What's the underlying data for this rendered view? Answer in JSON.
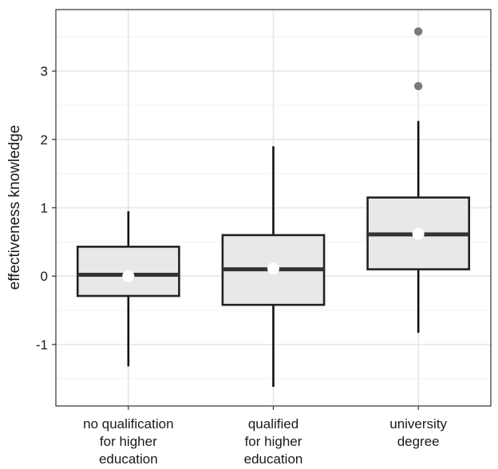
{
  "chart_data": {
    "type": "boxplot",
    "ylabel": "effectiveness knowledge",
    "xlabel": "",
    "ylim": [
      -1.9,
      3.9
    ],
    "yticks": [
      -1,
      0,
      1,
      2,
      3
    ],
    "ytick_labels": [
      "-1",
      "0",
      "1",
      "2",
      "3"
    ],
    "grid": true,
    "categories": [
      {
        "lines": [
          "no qualification",
          "for higher",
          "education"
        ]
      },
      {
        "lines": [
          "qualified",
          "for higher",
          "education"
        ]
      },
      {
        "lines": [
          "university",
          "degree"
        ]
      }
    ],
    "boxes": [
      {
        "whisker_low": -1.32,
        "q1": -0.29,
        "median": 0.02,
        "q3": 0.43,
        "whisker_high": 0.95,
        "mean": 0.0,
        "outliers": []
      },
      {
        "whisker_low": -1.62,
        "q1": -0.42,
        "median": 0.1,
        "q3": 0.6,
        "whisker_high": 1.9,
        "mean": 0.11,
        "outliers": []
      },
      {
        "whisker_low": -0.83,
        "q1": 0.1,
        "median": 0.61,
        "q3": 1.15,
        "whisker_high": 2.27,
        "mean": 0.62,
        "outliers": [
          2.78,
          3.58
        ]
      }
    ],
    "colors": {
      "panel_border": "#333333",
      "grid_major": "#e6e6e6",
      "grid_minor": "#f2f2f2",
      "box_fill": "#e8e8e8",
      "box_stroke": "#222222",
      "median": "#333333",
      "whisker": "#111111",
      "mean_point": "#ffffff",
      "outlier": "#7a7a7a"
    }
  }
}
